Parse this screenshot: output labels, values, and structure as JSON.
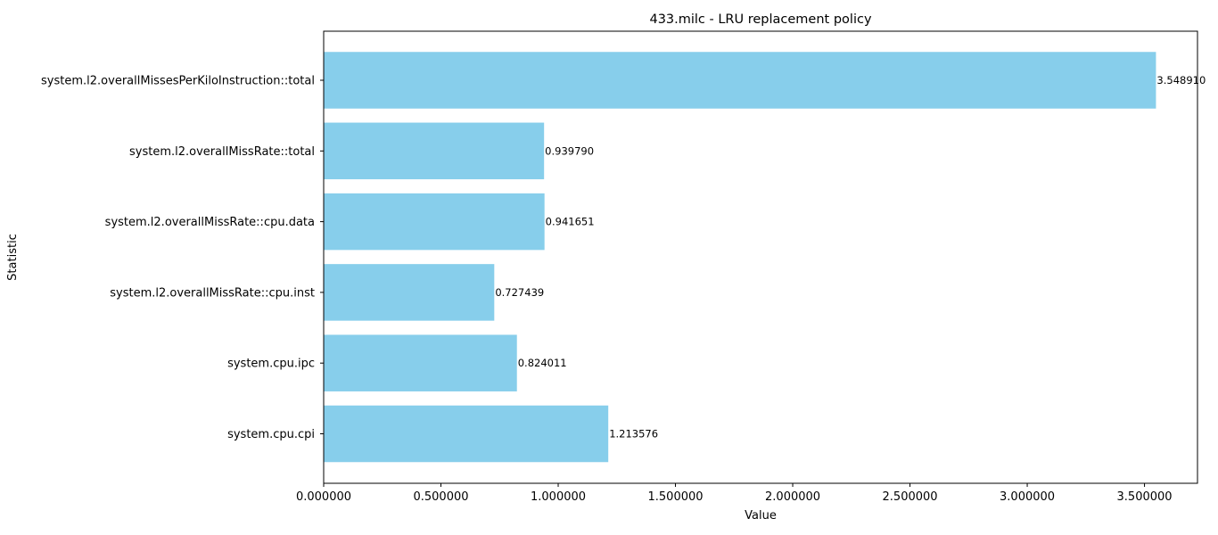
{
  "chart_data": {
    "type": "bar",
    "orientation": "horizontal",
    "title": "433.milc - LRU replacement policy",
    "xlabel": "Value",
    "ylabel": "Statistic",
    "categories": [
      "system.l2.overallMissesPerKiloInstruction::total",
      "system.l2.overallMissRate::total",
      "system.l2.overallMissRate::cpu.data",
      "system.l2.overallMissRate::cpu.inst",
      "system.cpu.ipc",
      "system.cpu.cpi"
    ],
    "values": [
      3.54891,
      0.93979,
      0.941651,
      0.727439,
      0.824011,
      1.213576
    ],
    "data_labels": [
      "3.548910",
      "0.939790",
      "0.941651",
      "0.727439",
      "0.824011",
      "1.213576"
    ],
    "xlim": [
      0,
      3.726
    ],
    "xticks": [
      0,
      0.5,
      1.0,
      1.5,
      2.0,
      2.5,
      3.0,
      3.5
    ],
    "xtick_labels": [
      "0.000000",
      "0.500000",
      "1.000000",
      "1.500000",
      "2.000000",
      "2.500000",
      "3.000000",
      "3.500000"
    ],
    "grid": false,
    "legend": "none",
    "bar_color": "#87CEEB"
  }
}
